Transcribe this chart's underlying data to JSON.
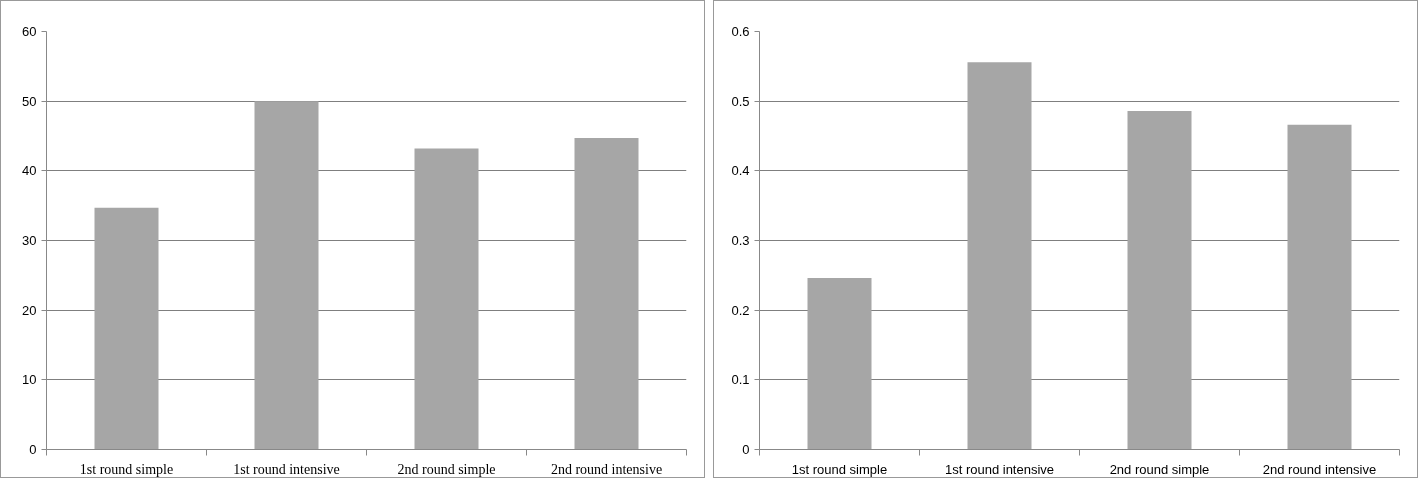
{
  "chart_data": [
    {
      "type": "bar",
      "categories": [
        "1st round simple",
        "1st round intensive",
        "2nd round simple",
        "2nd round intensive"
      ],
      "values": [
        34.7,
        50,
        43.2,
        44.7
      ],
      "color": "#a6a6a6",
      "ylim": [
        0,
        60
      ],
      "yticks": [
        0,
        10,
        20,
        30,
        40,
        50,
        60
      ],
      "grid": "y",
      "legend": false
    },
    {
      "type": "bar",
      "categories": [
        "1st round simple",
        "1st round intensive",
        "2nd round simple",
        "2nd round intensive"
      ],
      "values": [
        0.246,
        0.556,
        0.486,
        0.466
      ],
      "color": "#a6a6a6",
      "ylim": [
        0,
        0.6
      ],
      "yticks": [
        0,
        0.1,
        0.2,
        0.3,
        0.4,
        0.5,
        0.6
      ],
      "grid": "y",
      "legend": false
    }
  ]
}
